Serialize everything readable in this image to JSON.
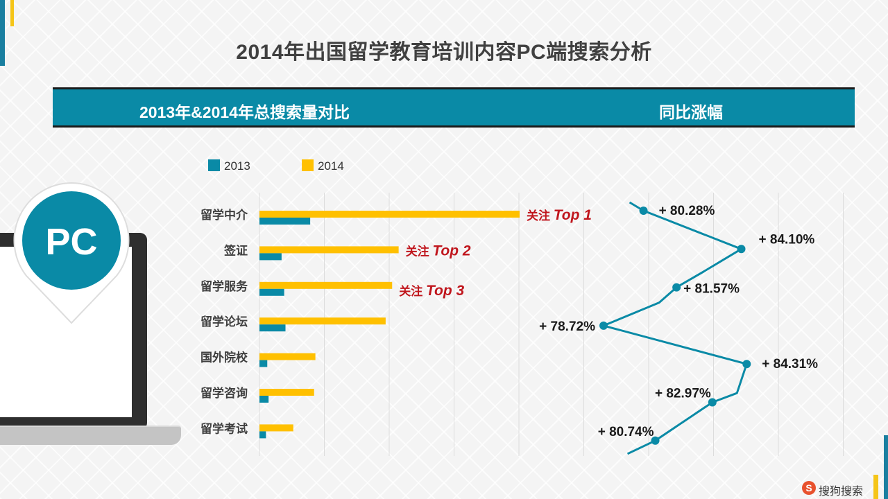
{
  "title": "2014年出国留学教育培训内容PC端搜索分析",
  "header": {
    "left_label": "2013年&2014年总搜索量对比",
    "right_label": "同比涨幅"
  },
  "badge": {
    "label": "PC"
  },
  "logo": {
    "mark": "S",
    "text": "搜狗搜索"
  },
  "colors": {
    "teal": "#0a8aa6",
    "yellow": "#ffc000",
    "highlight_red": "#c0161d",
    "accent_blue": "#1a7fa0",
    "accent_yellow": "#f5c518"
  },
  "chart_data": [
    {
      "type": "bar",
      "orientation": "horizontal",
      "categories": [
        "留学中介",
        "签证",
        "留学服务",
        "留学论坛",
        "国外院校",
        "留学咨询",
        "留学考试"
      ],
      "series": [
        {
          "name": "2013",
          "values": [
            39,
            17,
            19,
            20,
            6,
            7,
            5
          ]
        },
        {
          "name": "2014",
          "values": [
            200,
            107,
            102,
            97,
            43,
            42,
            26
          ]
        }
      ],
      "xlim": [
        0,
        450
      ],
      "grid": true,
      "legend": "top-left",
      "annotations": [
        {
          "category": "留学中介",
          "prefix": "关注",
          "text": "Top 1"
        },
        {
          "category": "签证",
          "prefix": "关注",
          "text": "Top 2"
        },
        {
          "category": "留学服务",
          "prefix": "关注",
          "text": "Top 3"
        }
      ]
    },
    {
      "type": "line",
      "title": "同比涨幅",
      "categories": [
        "留学中介",
        "签证",
        "留学服务",
        "留学论坛",
        "国外院校",
        "留学咨询",
        "留学考试"
      ],
      "values": [
        80.28,
        84.1,
        81.57,
        78.72,
        84.31,
        82.97,
        80.74
      ],
      "labels": [
        "+ 80.28%",
        "+ 84.10%",
        "+ 81.57%",
        "+ 78.72%",
        "+ 84.31%",
        "+ 82.97%",
        "+ 80.74%"
      ],
      "xlim": [
        77.5,
        85.5
      ]
    }
  ]
}
